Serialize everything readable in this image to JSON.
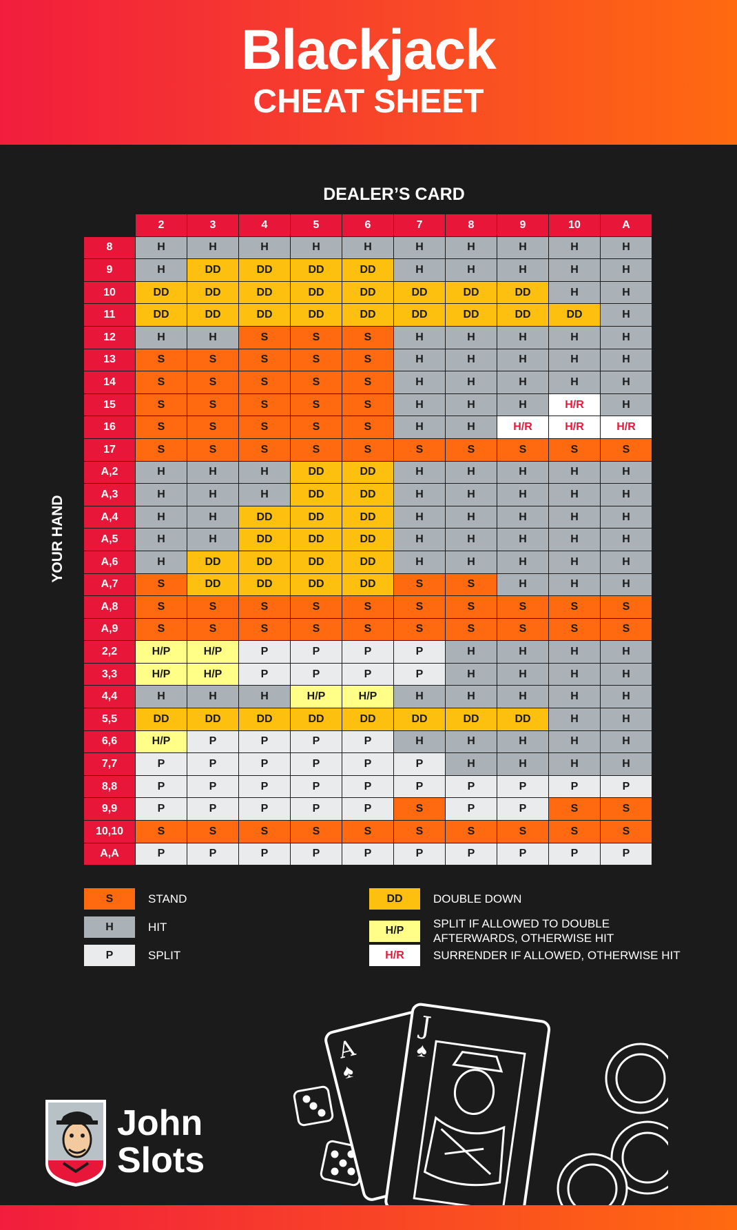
{
  "header": {
    "title": "Blackjack",
    "subtitle": "CHEAT SHEET"
  },
  "labels": {
    "dealer": "DEALER’S CARD",
    "player": "YOUR HAND"
  },
  "dealer_cards": [
    "2",
    "3",
    "4",
    "5",
    "6",
    "7",
    "8",
    "9",
    "10",
    "A"
  ],
  "rows": [
    {
      "hand": "8",
      "actions": [
        "H",
        "H",
        "H",
        "H",
        "H",
        "H",
        "H",
        "H",
        "H",
        "H"
      ]
    },
    {
      "hand": "9",
      "actions": [
        "H",
        "DD",
        "DD",
        "DD",
        "DD",
        "H",
        "H",
        "H",
        "H",
        "H"
      ]
    },
    {
      "hand": "10",
      "actions": [
        "DD",
        "DD",
        "DD",
        "DD",
        "DD",
        "DD",
        "DD",
        "DD",
        "H",
        "H"
      ]
    },
    {
      "hand": "11",
      "actions": [
        "DD",
        "DD",
        "DD",
        "DD",
        "DD",
        "DD",
        "DD",
        "DD",
        "DD",
        "H"
      ]
    },
    {
      "hand": "12",
      "actions": [
        "H",
        "H",
        "S",
        "S",
        "S",
        "H",
        "H",
        "H",
        "H",
        "H"
      ]
    },
    {
      "hand": "13",
      "actions": [
        "S",
        "S",
        "S",
        "S",
        "S",
        "H",
        "H",
        "H",
        "H",
        "H"
      ]
    },
    {
      "hand": "14",
      "actions": [
        "S",
        "S",
        "S",
        "S",
        "S",
        "H",
        "H",
        "H",
        "H",
        "H"
      ]
    },
    {
      "hand": "15",
      "actions": [
        "S",
        "S",
        "S",
        "S",
        "S",
        "H",
        "H",
        "H",
        "H/R",
        "H"
      ]
    },
    {
      "hand": "16",
      "actions": [
        "S",
        "S",
        "S",
        "S",
        "S",
        "H",
        "H",
        "H/R",
        "H/R",
        "H/R"
      ]
    },
    {
      "hand": "17",
      "actions": [
        "S",
        "S",
        "S",
        "S",
        "S",
        "S",
        "S",
        "S",
        "S",
        "S"
      ]
    },
    {
      "hand": "A,2",
      "actions": [
        "H",
        "H",
        "H",
        "DD",
        "DD",
        "H",
        "H",
        "H",
        "H",
        "H"
      ]
    },
    {
      "hand": "A,3",
      "actions": [
        "H",
        "H",
        "H",
        "DD",
        "DD",
        "H",
        "H",
        "H",
        "H",
        "H"
      ]
    },
    {
      "hand": "A,4",
      "actions": [
        "H",
        "H",
        "DD",
        "DD",
        "DD",
        "H",
        "H",
        "H",
        "H",
        "H"
      ]
    },
    {
      "hand": "A,5",
      "actions": [
        "H",
        "H",
        "DD",
        "DD",
        "DD",
        "H",
        "H",
        "H",
        "H",
        "H"
      ]
    },
    {
      "hand": "A,6",
      "actions": [
        "H",
        "DD",
        "DD",
        "DD",
        "DD",
        "H",
        "H",
        "H",
        "H",
        "H"
      ]
    },
    {
      "hand": "A,7",
      "actions": [
        "S",
        "DD",
        "DD",
        "DD",
        "DD",
        "S",
        "S",
        "H",
        "H",
        "H"
      ]
    },
    {
      "hand": "A,8",
      "actions": [
        "S",
        "S",
        "S",
        "S",
        "S",
        "S",
        "S",
        "S",
        "S",
        "S"
      ]
    },
    {
      "hand": "A,9",
      "actions": [
        "S",
        "S",
        "S",
        "S",
        "S",
        "S",
        "S",
        "S",
        "S",
        "S"
      ]
    },
    {
      "hand": "2,2",
      "actions": [
        "H/P",
        "H/P",
        "P",
        "P",
        "P",
        "P",
        "H",
        "H",
        "H",
        "H"
      ]
    },
    {
      "hand": "3,3",
      "actions": [
        "H/P",
        "H/P",
        "P",
        "P",
        "P",
        "P",
        "H",
        "H",
        "H",
        "H"
      ]
    },
    {
      "hand": "4,4",
      "actions": [
        "H",
        "H",
        "H",
        "H/P",
        "H/P",
        "H",
        "H",
        "H",
        "H",
        "H"
      ]
    },
    {
      "hand": "5,5",
      "actions": [
        "DD",
        "DD",
        "DD",
        "DD",
        "DD",
        "DD",
        "DD",
        "DD",
        "H",
        "H"
      ]
    },
    {
      "hand": "6,6",
      "actions": [
        "H/P",
        "P",
        "P",
        "P",
        "P",
        "H",
        "H",
        "H",
        "H",
        "H"
      ]
    },
    {
      "hand": "7,7",
      "actions": [
        "P",
        "P",
        "P",
        "P",
        "P",
        "P",
        "H",
        "H",
        "H",
        "H"
      ]
    },
    {
      "hand": "8,8",
      "actions": [
        "P",
        "P",
        "P",
        "P",
        "P",
        "P",
        "P",
        "P",
        "P",
        "P"
      ]
    },
    {
      "hand": "9,9",
      "actions": [
        "P",
        "P",
        "P",
        "P",
        "P",
        "S",
        "P",
        "P",
        "S",
        "S"
      ]
    },
    {
      "hand": "10,10",
      "actions": [
        "S",
        "S",
        "S",
        "S",
        "S",
        "S",
        "S",
        "S",
        "S",
        "S"
      ]
    },
    {
      "hand": "A,A",
      "actions": [
        "P",
        "P",
        "P",
        "P",
        "P",
        "P",
        "P",
        "P",
        "P",
        "P"
      ]
    }
  ],
  "cell_styles": {
    "S": "#ff6a10",
    "H": "#aab2b7",
    "P": "#e9ebec",
    "DD": "#fec00e",
    "H/P": "#ffff88",
    "H/R": "#ffffff",
    "header": "#e8173a"
  },
  "legend": [
    {
      "code": "S",
      "text": "STAND"
    },
    {
      "code": "H",
      "text": "HIT"
    },
    {
      "code": "P",
      "text": "SPLIT"
    },
    {
      "code": "DD",
      "text": "DOUBLE DOWN"
    },
    {
      "code": "H/P",
      "text": "SPLIT IF ALLOWED TO DOUBLE AFTERWARDS, OTHERWISE HIT"
    },
    {
      "code": "H/R",
      "text": "SURRENDER IF ALLOWED, OTHERWISE HIT"
    }
  ],
  "brand": {
    "line1": "John",
    "line2": "Slots"
  },
  "illustration": {
    "card_ace": "A",
    "card_jack": "J",
    "icons": [
      "dice-icon",
      "playing-cards-icon",
      "poker-chip-icon"
    ]
  }
}
